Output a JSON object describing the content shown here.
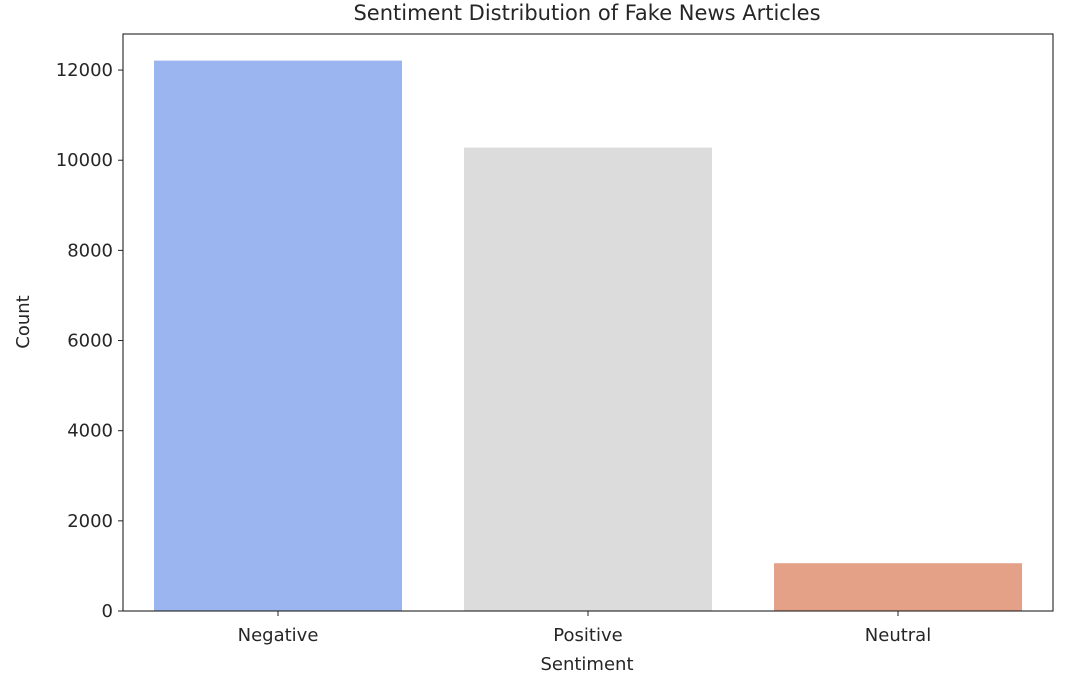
{
  "chart_data": {
    "type": "bar",
    "title": "Sentiment Distribution of Fake News Articles",
    "xlabel": "Sentiment",
    "ylabel": "Count",
    "categories": [
      "Negative",
      "Positive",
      "Neutral"
    ],
    "values": [
      12210,
      10280,
      1060
    ],
    "colors": [
      "#9ab5f0",
      "#dcdcdc",
      "#e5a088"
    ],
    "ylim": [
      0,
      12800
    ],
    "yticks": [
      0,
      2000,
      4000,
      6000,
      8000,
      10000,
      12000
    ],
    "ytick_labels": [
      "0",
      "2000",
      "4000",
      "6000",
      "8000",
      "10000",
      "12000"
    ],
    "grid": false,
    "legend": "none"
  }
}
